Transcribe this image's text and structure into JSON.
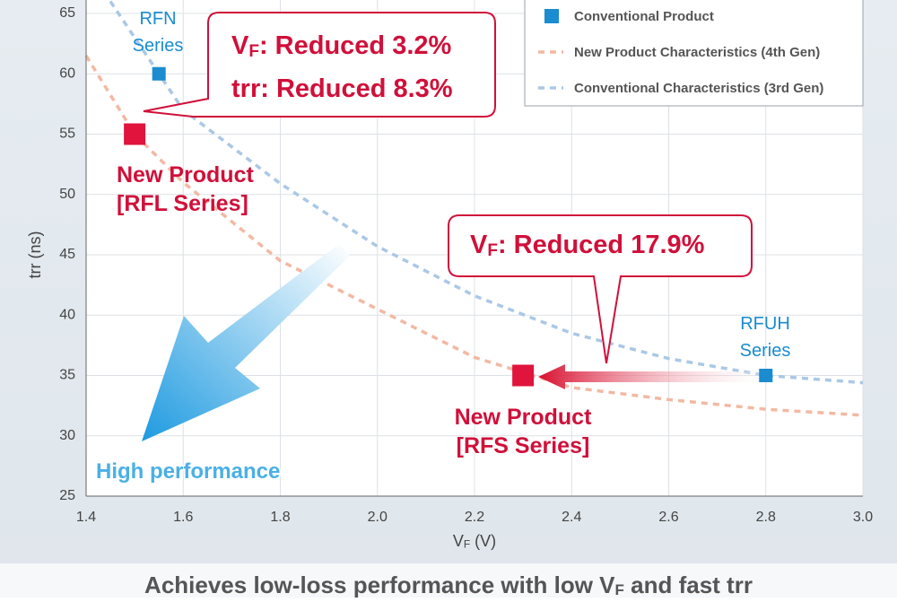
{
  "chart_data": {
    "type": "scatter",
    "xlim": [
      1.4,
      3.0
    ],
    "xticks": [
      {
        "value": 1.4,
        "label": "1.4"
      },
      {
        "value": 1.6,
        "label": "1.6"
      },
      {
        "value": 1.8,
        "label": "1.8"
      },
      {
        "value": 2.0,
        "label": "2.0"
      },
      {
        "value": 2.2,
        "label": "2.2"
      },
      {
        "value": 2.4,
        "label": "2.4"
      },
      {
        "value": 2.6,
        "label": "2.6"
      },
      {
        "value": 2.8,
        "label": "2.8"
      },
      {
        "value": 3.0,
        "label": "3.0"
      }
    ],
    "ylim": [
      25,
      65
    ],
    "yticks": [
      25,
      30,
      35,
      40,
      45,
      50,
      55,
      60,
      65
    ],
    "grid": true,
    "x_label": [
      {
        "text": "V"
      },
      {
        "text": "F",
        "sub": true
      },
      {
        "text": " (V)"
      }
    ],
    "y_label": "trr (ns)",
    "legend": "upper right",
    "series": [
      {
        "name": "Conventional Product",
        "type": "scatter",
        "color": "#1a8ccf",
        "x": [
          1.55,
          2.8
        ],
        "values": [
          60,
          35
        ]
      },
      {
        "type": "scatter",
        "color": "#e0143c",
        "x": [
          1.5,
          2.3
        ],
        "values": [
          55,
          35
        ]
      },
      {
        "name": "New Product Characteristics (4th Gen)",
        "type": "line",
        "dashed": true,
        "color": "#f2b9a2",
        "x": [
          1.4,
          1.5,
          1.6,
          1.8,
          2.0,
          2.2,
          2.4,
          2.6,
          2.8,
          3.0
        ],
        "values": [
          61.5,
          55,
          51,
          44.5,
          40.5,
          36.5,
          34,
          33,
          32.2,
          31.7
        ]
      },
      {
        "name": "Conventional Characteristics (3rd Gen)",
        "type": "line",
        "dashed": true,
        "color": "#aac8e6",
        "x": [
          1.45,
          1.55,
          1.6,
          1.8,
          2.0,
          2.2,
          2.4,
          2.6,
          2.8,
          3.0
        ],
        "values": [
          66,
          60,
          57,
          50.9,
          45.7,
          41.6,
          38.5,
          36.4,
          35,
          34.4
        ]
      }
    ],
    "annotations": [
      {
        "lines": [
          [
            {
              "text": "RFN"
            }
          ],
          [
            {
              "text": "Series"
            }
          ]
        ]
      },
      {
        "lines": [
          [
            {
              "text": "RFUH"
            }
          ],
          [
            {
              "text": "Series"
            }
          ]
        ]
      },
      {
        "lines": [
          [
            {
              "text": "New Product"
            }
          ],
          [
            {
              "text": "[RFL Series]"
            }
          ]
        ]
      },
      {
        "lines": [
          [
            {
              "text": "New Product"
            }
          ],
          [
            {
              "text": "[RFS Series]"
            }
          ]
        ]
      },
      {
        "lines": [
          [
            {
              "text": "V"
            },
            {
              "text": "F",
              "sub": true
            },
            {
              "text": ": Reduced 3.2%"
            }
          ],
          [
            {
              "text": "trr: Reduced 8.3%"
            }
          ]
        ]
      },
      {
        "lines": [
          [
            {
              "text": "V"
            },
            {
              "text": "F",
              "sub": true
            },
            {
              "text": ": Reduced 17.9%"
            }
          ]
        ]
      },
      {
        "lines": [
          [
            {
              "text": "High performance"
            }
          ]
        ]
      }
    ],
    "footer": [
      {
        "text": "Achieves low-loss performance with low V"
      },
      {
        "text": "F",
        "sub": true
      },
      {
        "text": " and fast trr"
      }
    ]
  }
}
